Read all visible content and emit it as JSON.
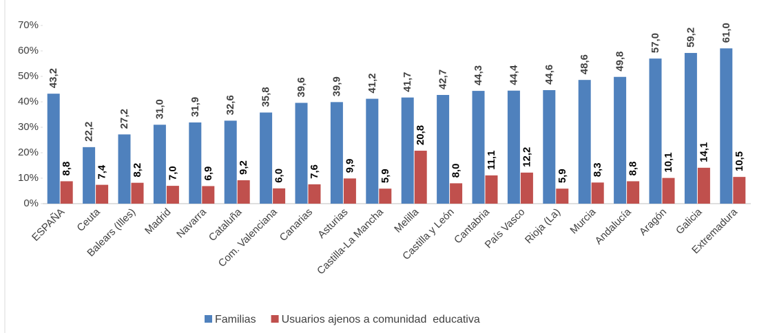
{
  "chart_data": {
    "type": "bar",
    "categories": [
      "ESPAÑA",
      "Ceuta",
      "Balears (Illes)",
      "Madrid",
      "Navarra",
      "Cataluña",
      "Com. Valenciana",
      "Canarias",
      "Asturias",
      "Castilla-La Mancha",
      "Melilla",
      "Castilla y León",
      "Cantabria",
      "País Vasco",
      "Rioja (La)",
      "Murcia",
      "Andalucía",
      "Aragón",
      "Galicia",
      "Extremadura"
    ],
    "series": [
      {
        "name": "Familias",
        "color": "#4f81bd",
        "values": [
          43.2,
          22.2,
          27.2,
          31.0,
          31.9,
          32.6,
          35.8,
          39.6,
          39.9,
          41.2,
          41.7,
          42.7,
          44.3,
          44.4,
          44.6,
          48.6,
          49.8,
          57.0,
          59.2,
          61.0
        ],
        "value_labels": [
          "43,2",
          "22,2",
          "27,2",
          "31,0",
          "31,9",
          "32,6",
          "35,8",
          "39,6",
          "39,9",
          "41,2",
          "41,7",
          "42,7",
          "44,3",
          "44,4",
          "44,6",
          "48,6",
          "49,8",
          "57,0",
          "59,2",
          "61,0"
        ]
      },
      {
        "name": "Usuarios ajenos a comunidad  educativa",
        "color": "#c0504d",
        "values": [
          8.8,
          7.4,
          8.2,
          7.0,
          6.9,
          9.2,
          6.0,
          7.6,
          9.9,
          5.9,
          20.8,
          8.0,
          11.1,
          12.2,
          5.9,
          8.3,
          8.8,
          10.1,
          14.1,
          10.5
        ],
        "value_labels": [
          "8,8",
          "7,4",
          "8,2",
          "7,0",
          "6,9",
          "9,2",
          "6,0",
          "7,6",
          "9,9",
          "5,9",
          "20,8",
          "8,0",
          "11,1",
          "12,2",
          "5,9",
          "8,3",
          "8,8",
          "10,1",
          "14,1",
          "10,5"
        ]
      }
    ],
    "ylim": [
      0,
      70
    ],
    "yticks": [
      {
        "value": 0,
        "label": "0%"
      },
      {
        "value": 10,
        "label": "10%"
      },
      {
        "value": 20,
        "label": "20%"
      },
      {
        "value": 30,
        "label": "30%"
      },
      {
        "value": 40,
        "label": "40%"
      },
      {
        "value": 50,
        "label": "50%"
      },
      {
        "value": 60,
        "label": "60%"
      },
      {
        "value": 70,
        "label": "70%"
      }
    ],
    "legend": "bottom"
  }
}
